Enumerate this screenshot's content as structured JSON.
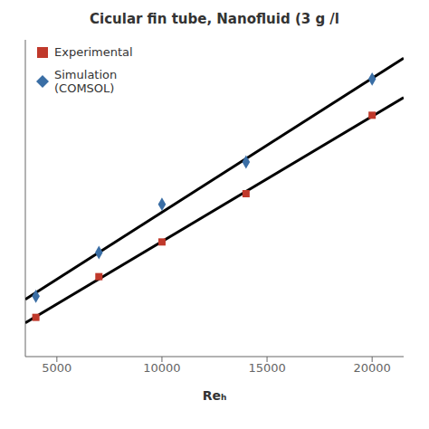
{
  "chart_data": {
    "type": "scatter",
    "title": "Cicular fin tube, Nanofluid (3 g /l",
    "xlabel": "Reₕ",
    "xlim": [
      3500,
      21500
    ],
    "xticks": [
      5000,
      10000,
      15000,
      20000
    ],
    "ylim": [
      0.0,
      1.05
    ],
    "tick_labels": "x",
    "grid": false,
    "legend": "upper left",
    "series": [
      {
        "type": "line",
        "color": "black",
        "x": [
          3500,
          21500
        ],
        "values": [
          0.111942,
          0.858481
        ]
      },
      {
        "type": "line",
        "color": "black",
        "x": [
          3500,
          21500
        ],
        "values": [
          0.189827,
          0.989442
        ]
      },
      {
        "type": "scatter",
        "name": "Experimental",
        "color": "#C0392B",
        "marker": "square",
        "x": [
          4000,
          7000,
          10000,
          14000,
          20000
        ],
        "values": [
          0.13,
          0.265,
          0.38,
          0.54,
          0.8
        ]
      },
      {
        "type": "scatter",
        "name": "Simulation\n(COMSOL)",
        "color": "#3A6EA5",
        "marker": "diamond",
        "x": [
          4000,
          7000,
          10000,
          14000,
          20000
        ],
        "values": [
          0.2,
          0.345,
          0.505,
          0.645,
          0.92
        ]
      }
    ]
  }
}
